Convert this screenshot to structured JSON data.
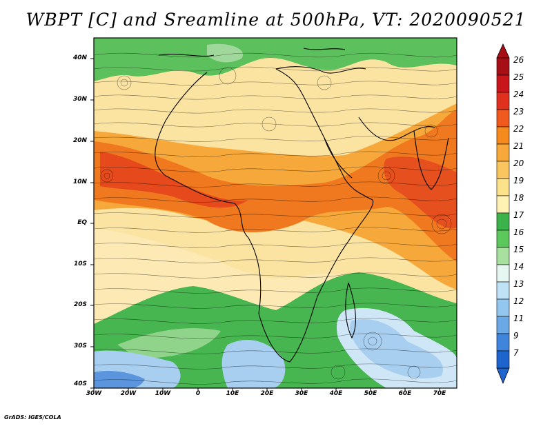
{
  "title": "WBPT [C] and Sreamline at 500hPa, VT: 2020090521",
  "credit": "GrADS: IGES/COLA",
  "map": {
    "lat_labels": [
      "40N",
      "30N",
      "20N",
      "10N",
      "EQ",
      "10S",
      "20S",
      "30S",
      "40S"
    ],
    "lon_labels": [
      "30W",
      "20W",
      "10W",
      "0",
      "10E",
      "20E",
      "30E",
      "40E",
      "50E",
      "60E",
      "70E"
    ],
    "lon_range": [
      -30,
      75
    ],
    "lat_range": [
      -40,
      45
    ]
  },
  "colorbar": {
    "labels": [
      "26",
      "25",
      "24",
      "23",
      "22",
      "21",
      "20",
      "19",
      "18",
      "17",
      "16",
      "15",
      "14",
      "13",
      "12",
      "11",
      "9",
      "7"
    ],
    "colors": [
      "#a50f15",
      "#c8161c",
      "#e0301e",
      "#f05a1e",
      "#f58a1e",
      "#f7a83a",
      "#fac55f",
      "#fde28c",
      "#fff2b3",
      "#3cb34a",
      "#5cc85c",
      "#a8e0a0",
      "#e6f7f2",
      "#bfe2f7",
      "#94c7ef",
      "#6aa8e6",
      "#3f85dc",
      "#1f63cc"
    ]
  }
}
